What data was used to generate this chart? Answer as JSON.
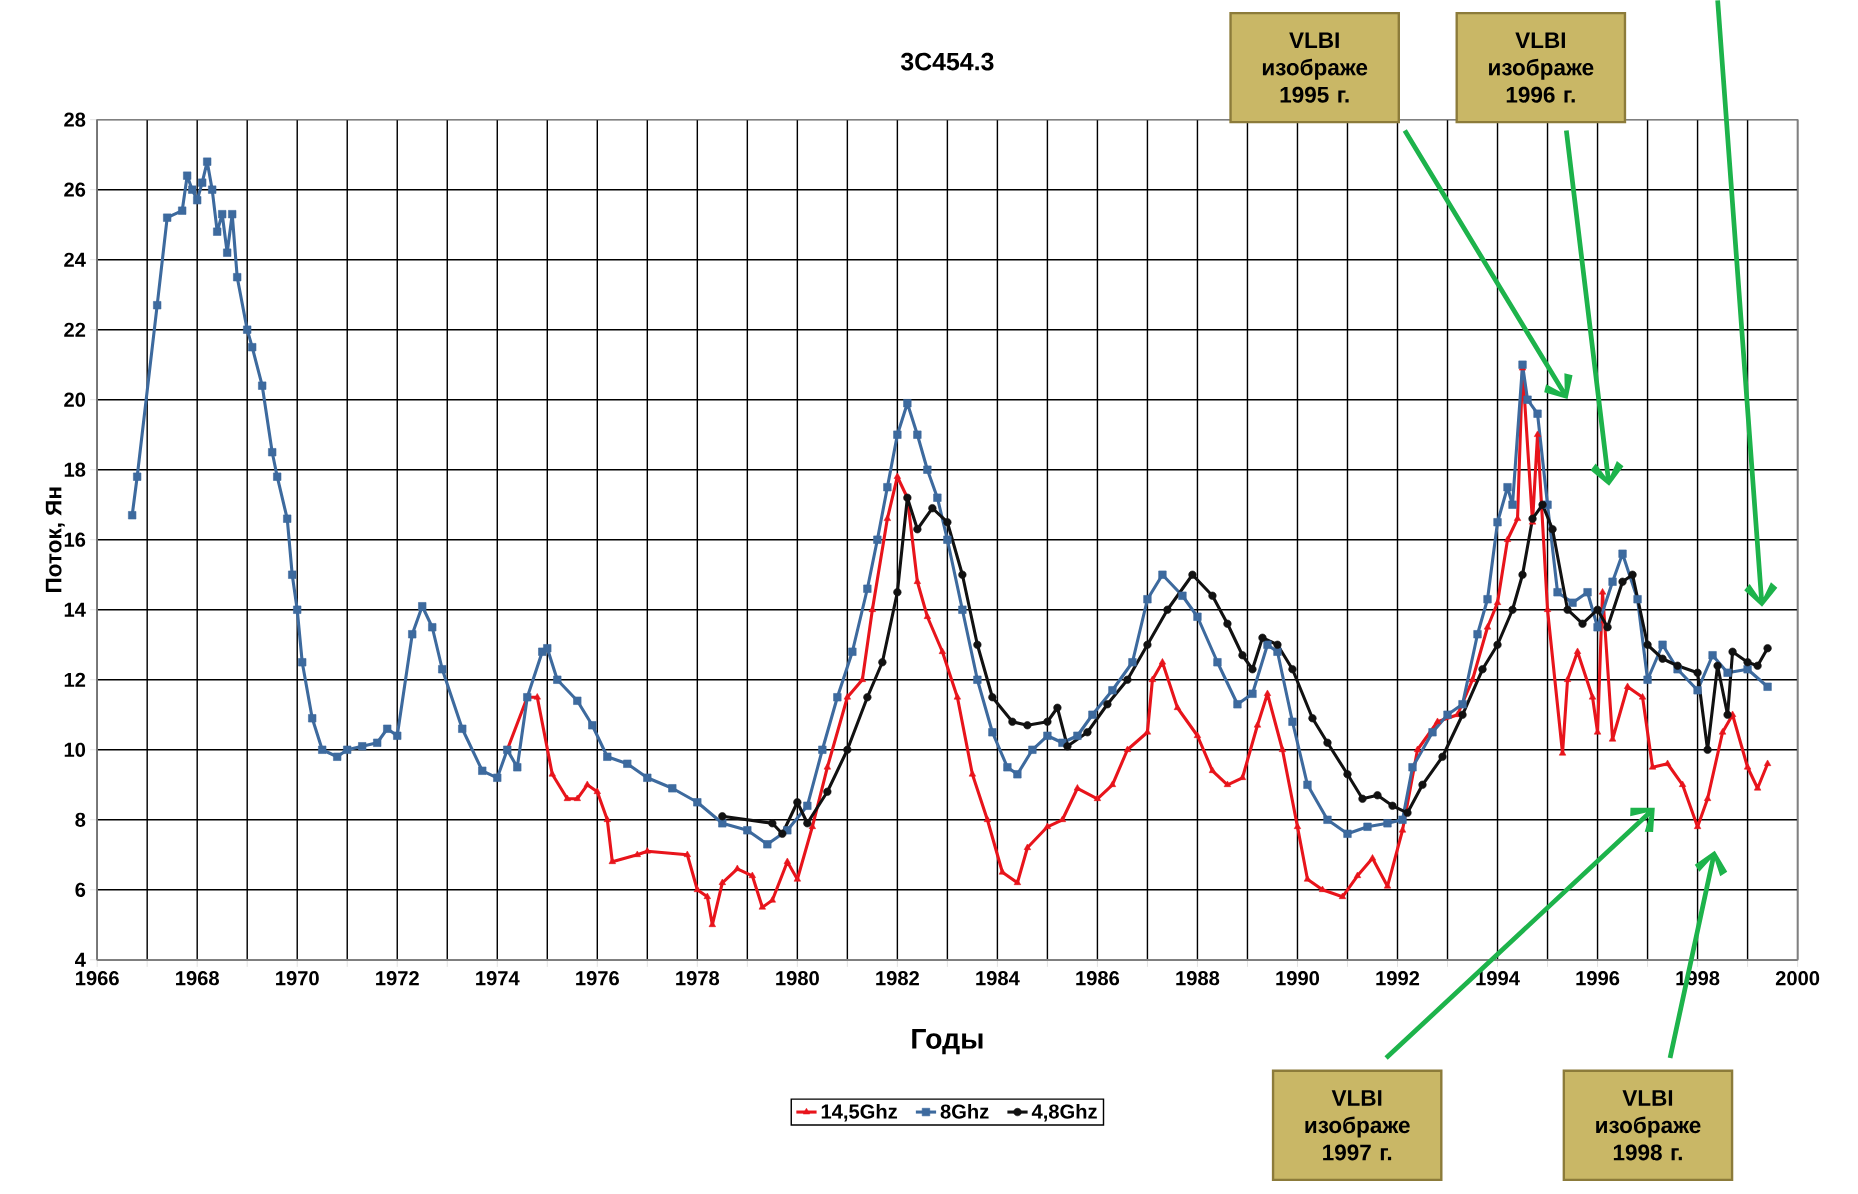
{
  "chart_data": {
    "type": "line",
    "title": "3C454.3",
    "xlabel": "Годы",
    "ylabel": "Поток, Ян",
    "xlim": [
      1966,
      2000
    ],
    "ylim": [
      4,
      28
    ],
    "xticks": [
      1966,
      {
        "value": 1967,
        "label": null
      },
      1968,
      {
        "value": 1969,
        "label": null
      },
      1970,
      {
        "value": 1971,
        "label": null
      },
      1972,
      {
        "value": 1973,
        "label": null
      },
      1974,
      {
        "value": 1975,
        "label": null
      },
      1976,
      {
        "value": 1977,
        "label": null
      },
      1978,
      {
        "value": 1979,
        "label": null
      },
      1980,
      {
        "value": 1981,
        "label": null
      },
      1982,
      {
        "value": 1983,
        "label": null
      },
      1984,
      {
        "value": 1985,
        "label": null
      },
      1986,
      {
        "value": 1987,
        "label": null
      },
      1988,
      {
        "value": 1989,
        "label": null
      },
      1990,
      {
        "value": 1991,
        "label": null
      },
      1992,
      {
        "value": 1993,
        "label": null
      },
      1994,
      {
        "value": 1995,
        "label": null
      },
      1996,
      {
        "value": 1997,
        "label": null
      },
      1998,
      {
        "value": 1999,
        "label": null
      },
      2000
    ],
    "yticks": [
      4,
      6,
      8,
      10,
      12,
      14,
      16,
      18,
      20,
      22,
      24,
      26,
      28
    ],
    "grid": true,
    "legend": "bottom",
    "line_style": "solid",
    "series": [
      {
        "name": "14,5Ghz",
        "color": "#e8141b",
        "marker": "triangle",
        "x": [
          1974.2,
          1974.6,
          1974.8,
          1975.1,
          1975.4,
          1975.6,
          1975.8,
          1976.0,
          1976.2,
          1976.3,
          1976.8,
          1977.0,
          1977.8,
          1978.0,
          1978.2,
          1978.3,
          1978.5,
          1978.8,
          1979.1,
          1979.3,
          1979.5,
          1979.8,
          1980.0,
          1980.3,
          1980.6,
          1981.0,
          1981.3,
          1981.5,
          1981.8,
          1982.0,
          1982.2,
          1982.4,
          1982.6,
          1982.9,
          1983.2,
          1983.5,
          1983.8,
          1984.1,
          1984.4,
          1984.6,
          1985.0,
          1985.3,
          1985.6,
          1986.0,
          1986.3,
          1986.6,
          1987.0,
          1987.1,
          1987.3,
          1987.6,
          1988.0,
          1988.3,
          1988.6,
          1988.9,
          1989.2,
          1989.4,
          1989.7,
          1990.0,
          1990.2,
          1990.5,
          1990.9,
          1991.2,
          1991.5,
          1991.8,
          1992.1,
          1992.4,
          1992.8,
          1993.2,
          1993.5,
          1993.8,
          1994.0,
          1994.2,
          1994.4,
          1994.5,
          1994.7,
          1994.8,
          1995.0,
          1995.3,
          1995.4,
          1995.6,
          1995.9,
          1996.0,
          1996.1,
          1996.3,
          1996.6,
          1996.9,
          1997.1,
          1997.4,
          1997.7,
          1998.0,
          1998.2,
          1998.5,
          1998.7,
          1999.0,
          1999.2,
          1999.4
        ],
        "values": [
          10.0,
          11.5,
          11.5,
          9.3,
          8.6,
          8.6,
          9.0,
          8.8,
          8.0,
          6.8,
          7.0,
          7.1,
          7.0,
          6.0,
          5.8,
          5.0,
          6.2,
          6.6,
          6.4,
          5.5,
          5.7,
          6.8,
          6.3,
          7.8,
          9.5,
          11.5,
          12.0,
          14.0,
          16.6,
          17.8,
          17.2,
          14.8,
          13.8,
          12.8,
          11.5,
          9.3,
          8.0,
          6.5,
          6.2,
          7.2,
          7.8,
          8.0,
          8.9,
          8.6,
          9.0,
          10.0,
          10.5,
          12.0,
          12.5,
          11.2,
          10.4,
          9.4,
          9.0,
          9.2,
          10.7,
          11.6,
          10.0,
          7.8,
          6.3,
          6.0,
          5.8,
          6.4,
          6.9,
          6.1,
          7.7,
          10.0,
          10.8,
          11.0,
          12.0,
          13.5,
          14.2,
          16.0,
          16.6,
          20.9,
          16.5,
          19.0,
          14.0,
          9.9,
          12.0,
          12.8,
          11.5,
          10.5,
          14.5,
          10.3,
          11.8,
          11.5,
          9.5,
          9.6,
          9.0,
          7.8,
          8.6,
          10.5,
          11.0,
          9.5,
          8.9,
          9.6
        ]
      },
      {
        "name": "8Ghz",
        "color": "#3d6a9e",
        "marker": "square",
        "x": [
          1966.7,
          1966.8,
          1967.2,
          1967.4,
          1967.7,
          1967.8,
          1967.9,
          1968.0,
          1968.1,
          1968.2,
          1968.3,
          1968.4,
          1968.5,
          1968.6,
          1968.7,
          1968.8,
          1969.0,
          1969.1,
          1969.3,
          1969.5,
          1969.6,
          1969.8,
          1969.9,
          1970.0,
          1970.1,
          1970.3,
          1970.5,
          1970.8,
          1971.0,
          1971.3,
          1971.6,
          1971.8,
          1972.0,
          1972.3,
          1972.5,
          1972.7,
          1972.9,
          1973.3,
          1973.7,
          1974.0,
          1974.2,
          1974.4,
          1974.6,
          1974.9,
          1975.0,
          1975.2,
          1975.6,
          1975.9,
          1976.2,
          1976.6,
          1977.0,
          1977.5,
          1978.0,
          1978.5,
          1979.0,
          1979.4,
          1979.8,
          1980.2,
          1980.5,
          1980.8,
          1981.1,
          1981.4,
          1981.6,
          1981.8,
          1982.0,
          1982.2,
          1982.4,
          1982.6,
          1982.8,
          1983.0,
          1983.3,
          1983.6,
          1983.9,
          1984.2,
          1984.4,
          1984.7,
          1985.0,
          1985.3,
          1985.6,
          1985.9,
          1986.3,
          1986.7,
          1987.0,
          1987.3,
          1987.7,
          1988.0,
          1988.4,
          1988.8,
          1989.1,
          1989.4,
          1989.6,
          1989.9,
          1990.2,
          1990.6,
          1991.0,
          1991.4,
          1991.8,
          1992.1,
          1992.3,
          1992.7,
          1993.0,
          1993.3,
          1993.6,
          1993.8,
          1994.0,
          1994.2,
          1994.3,
          1994.5,
          1994.6,
          1994.8,
          1995.0,
          1995.2,
          1995.5,
          1995.8,
          1996.0,
          1996.3,
          1996.5,
          1996.8,
          1997.0,
          1997.3,
          1997.6,
          1998.0,
          1998.3,
          1998.6,
          1999.0,
          1999.4
        ],
        "values": [
          16.7,
          17.8,
          22.7,
          25.2,
          25.4,
          26.4,
          26.0,
          25.7,
          26.2,
          26.8,
          26.0,
          24.8,
          25.3,
          24.2,
          25.3,
          23.5,
          22.0,
          21.5,
          20.4,
          18.5,
          17.8,
          16.6,
          15.0,
          14.0,
          12.5,
          10.9,
          10.0,
          9.8,
          10.0,
          10.1,
          10.2,
          10.6,
          10.4,
          13.3,
          14.1,
          13.5,
          12.3,
          10.6,
          9.4,
          9.2,
          10.0,
          9.5,
          11.5,
          12.8,
          12.9,
          12.0,
          11.4,
          10.7,
          9.8,
          9.6,
          9.2,
          8.9,
          8.5,
          7.9,
          7.7,
          7.3,
          7.7,
          8.4,
          10.0,
          11.5,
          12.8,
          14.6,
          16.0,
          17.5,
          19.0,
          19.9,
          19.0,
          18.0,
          17.2,
          16.0,
          14.0,
          12.0,
          10.5,
          9.5,
          9.3,
          10.0,
          10.4,
          10.2,
          10.4,
          11.0,
          11.7,
          12.5,
          14.3,
          15.0,
          14.4,
          13.8,
          12.5,
          11.3,
          11.6,
          13.0,
          12.8,
          10.8,
          9.0,
          8.0,
          7.6,
          7.8,
          7.9,
          8.0,
          9.5,
          10.5,
          11.0,
          11.3,
          13.3,
          14.3,
          16.5,
          17.5,
          17.0,
          21.0,
          20.0,
          19.6,
          17.0,
          14.5,
          14.2,
          14.5,
          13.5,
          14.8,
          15.6,
          14.3,
          12.0,
          13.0,
          12.3,
          11.7,
          12.7,
          12.2,
          12.3,
          11.8
        ]
      },
      {
        "name": "4,8Ghz",
        "color": "#111111",
        "marker": "circle",
        "x": [
          1978.5,
          1979.5,
          1979.7,
          1980.0,
          1980.2,
          1980.6,
          1981.0,
          1981.4,
          1981.7,
          1982.0,
          1982.2,
          1982.4,
          1982.7,
          1983.0,
          1983.3,
          1983.6,
          1983.9,
          1984.3,
          1984.6,
          1985.0,
          1985.2,
          1985.4,
          1985.8,
          1986.2,
          1986.6,
          1987.0,
          1987.4,
          1987.9,
          1988.3,
          1988.6,
          1988.9,
          1989.1,
          1989.3,
          1989.6,
          1989.9,
          1990.3,
          1990.6,
          1991.0,
          1991.3,
          1991.6,
          1991.9,
          1992.2,
          1992.5,
          1992.9,
          1993.3,
          1993.7,
          1994.0,
          1994.3,
          1994.5,
          1994.7,
          1994.9,
          1995.1,
          1995.4,
          1995.7,
          1996.0,
          1996.2,
          1996.5,
          1996.7,
          1997.0,
          1997.3,
          1997.6,
          1998.0,
          1998.2,
          1998.4,
          1998.6,
          1998.7,
          1999.0,
          1999.2,
          1999.4
        ],
        "values": [
          8.1,
          7.9,
          7.6,
          8.5,
          7.9,
          8.8,
          10.0,
          11.5,
          12.5,
          14.5,
          17.2,
          16.3,
          16.9,
          16.5,
          15.0,
          13.0,
          11.5,
          10.8,
          10.7,
          10.8,
          11.2,
          10.1,
          10.5,
          11.3,
          12.0,
          13.0,
          14.0,
          15.0,
          14.4,
          13.6,
          12.7,
          12.3,
          13.2,
          13.0,
          12.3,
          10.9,
          10.2,
          9.3,
          8.6,
          8.7,
          8.4,
          8.2,
          9.0,
          9.8,
          11.0,
          12.3,
          13.0,
          14.0,
          15.0,
          16.6,
          17.0,
          16.3,
          14.0,
          13.6,
          14.0,
          13.5,
          14.8,
          15.0,
          13.0,
          12.6,
          12.4,
          12.2,
          10.0,
          12.4,
          11.0,
          12.8,
          12.5,
          12.4,
          12.9
        ]
      }
    ],
    "annotations": [
      "VLBI изображе 1995 г.",
      "VLBI изображе 1996 г.",
      "VLBI изображе 1997 г.",
      "VLBI изображе 1998 г."
    ]
  }
}
